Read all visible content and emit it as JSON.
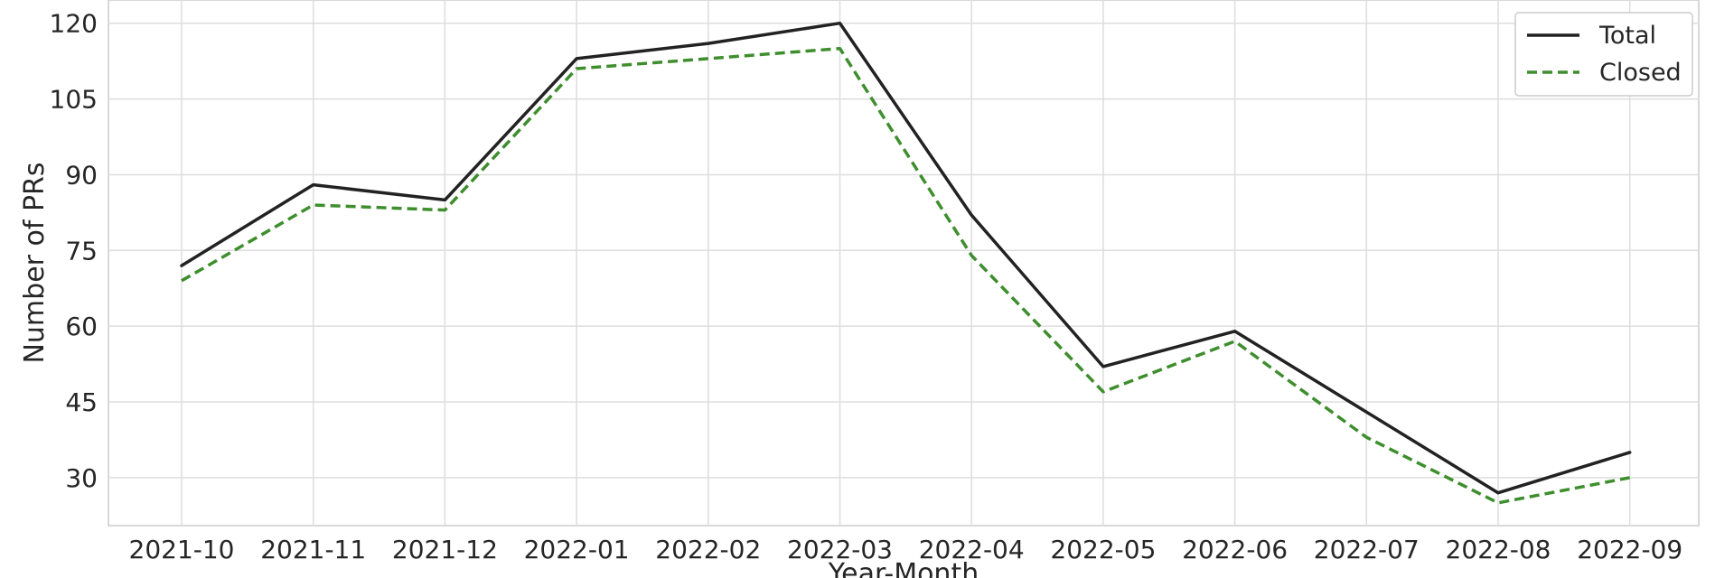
{
  "chart_data": {
    "type": "line",
    "title": "",
    "xlabel": "Year-Month",
    "ylabel": "Number of PRs",
    "categories": [
      "2021-10",
      "2021-11",
      "2021-12",
      "2022-01",
      "2022-02",
      "2022-03",
      "2022-04",
      "2022-05",
      "2022-06",
      "2022-07",
      "2022-08",
      "2022-09"
    ],
    "y_ticks": [
      30,
      45,
      60,
      75,
      90,
      105,
      120
    ],
    "ylim": [
      20.5,
      124.6
    ],
    "grid": true,
    "legend_position": "top-right",
    "series": [
      {
        "name": "Total",
        "color": "#222222",
        "style": "solid",
        "values": [
          72,
          88,
          85,
          113,
          116,
          120,
          82,
          52,
          59,
          43,
          27,
          35
        ]
      },
      {
        "name": "Closed",
        "color": "#3e8e2e",
        "style": "dashed",
        "values": [
          69,
          84,
          83,
          111,
          113,
          115,
          74,
          47,
          57,
          38,
          25,
          30
        ]
      }
    ]
  }
}
